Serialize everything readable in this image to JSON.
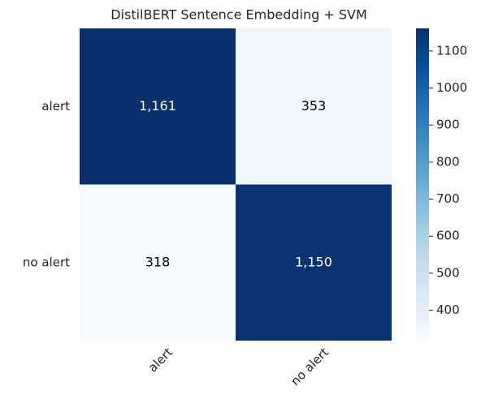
{
  "chart_data": {
    "type": "heatmap",
    "title": "DistilBERT Sentence Embedding + SVM",
    "x_categories": [
      "alert",
      "no alert"
    ],
    "y_categories": [
      "alert",
      "no alert"
    ],
    "values": [
      [
        1161,
        353
      ],
      [
        318,
        1150
      ]
    ],
    "value_labels": [
      [
        "1,161",
        "353"
      ],
      [
        "318",
        "1,150"
      ]
    ],
    "colormap": [
      "#f7fbff",
      "#deebf7",
      "#c6dbef",
      "#9ecae1",
      "#6baed6",
      "#4292c6",
      "#2171b5",
      "#08519c",
      "#08306b"
    ],
    "clim": [
      318,
      1161
    ],
    "cticks": [
      400,
      500,
      600,
      700,
      800,
      900,
      1000,
      1100
    ]
  }
}
